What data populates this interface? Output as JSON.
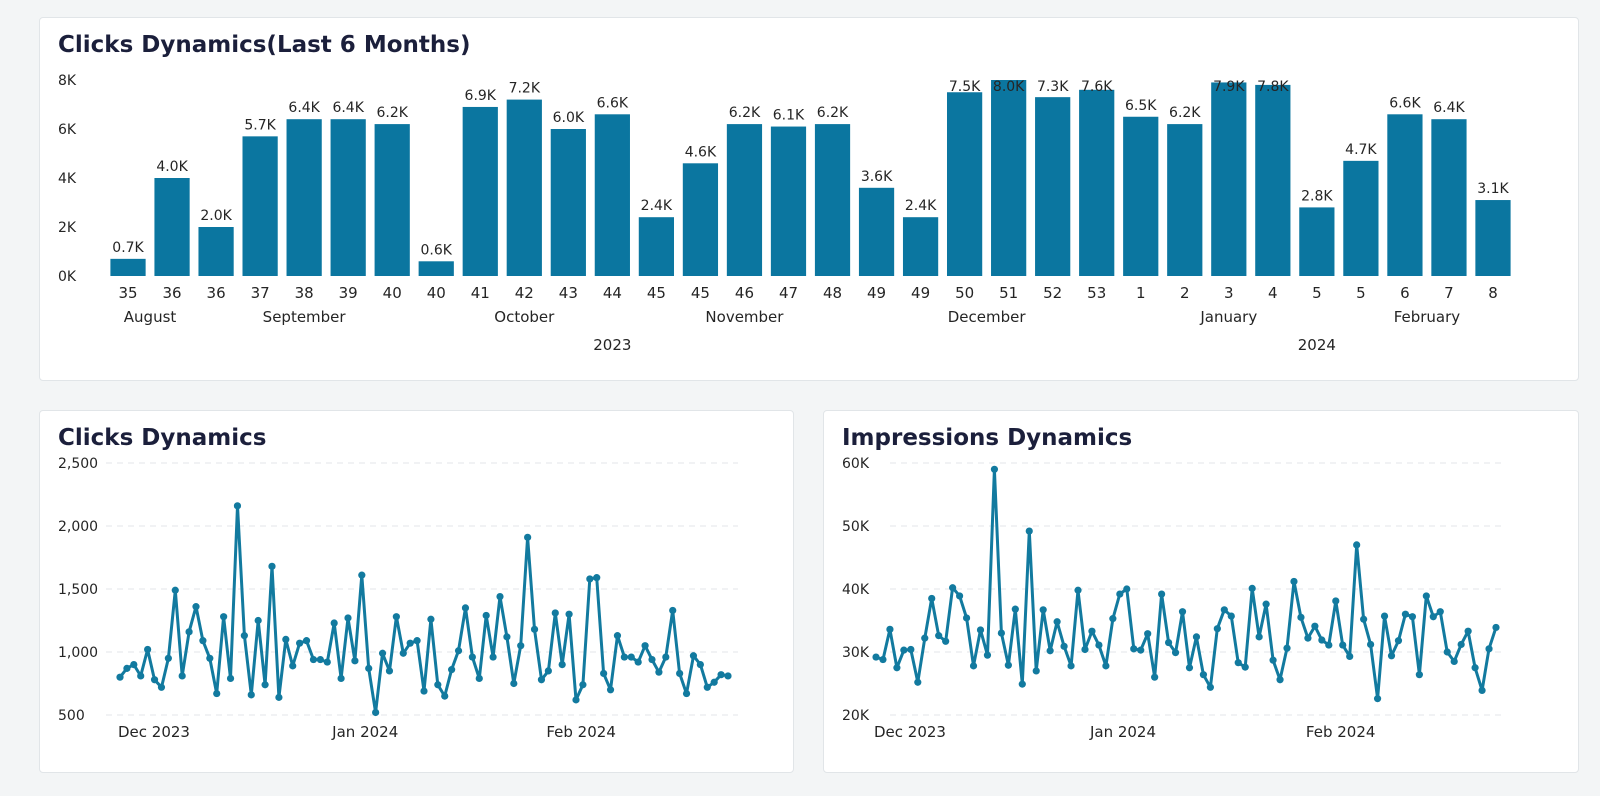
{
  "colors": {
    "bar": "#0b76a0",
    "line": "#127a9f",
    "text": "#252525",
    "grid": "#e3e6ea"
  },
  "top_card": {
    "title": "Clicks Dynamics(Last 6 Months)"
  },
  "clicks_card": {
    "title": "Clicks Dynamics"
  },
  "impressions_card": {
    "title": "Impressions Dynamics"
  },
  "chart_data": [
    {
      "type": "bar",
      "title": "Clicks Dynamics(Last 6 Months)",
      "y_ticks": [
        "0K",
        "2K",
        "4K",
        "6K",
        "8K"
      ],
      "y_tick_values": [
        0,
        2000,
        4000,
        6000,
        8000
      ],
      "ylim": [
        0,
        8000
      ],
      "categories": [
        "35",
        "36",
        "36",
        "37",
        "38",
        "39",
        "40",
        "40",
        "41",
        "42",
        "43",
        "44",
        "45",
        "45",
        "46",
        "47",
        "48",
        "49",
        "49",
        "50",
        "51",
        "52",
        "53",
        "1",
        "2",
        "3",
        "4",
        "5",
        "5",
        "6",
        "7",
        "8"
      ],
      "values": [
        700,
        4000,
        2000,
        5700,
        6400,
        6400,
        6200,
        600,
        6900,
        7200,
        6000,
        6600,
        2400,
        4600,
        6200,
        6100,
        6200,
        3600,
        2400,
        7500,
        8000,
        7300,
        7600,
        6500,
        6200,
        7900,
        7800,
        2800,
        4700,
        6600,
        6400,
        3100
      ],
      "data_labels": [
        "0.7K",
        "4.0K",
        "2.0K",
        "5.7K",
        "6.4K",
        "6.4K",
        "6.2K",
        "0.6K",
        "6.9K",
        "7.2K",
        "6.0K",
        "6.6K",
        "2.4K",
        "4.6K",
        "6.2K",
        "6.1K",
        "6.2K",
        "3.6K",
        "2.4K",
        "7.5K",
        "8.0K",
        "7.3K",
        "7.6K",
        "6.5K",
        "6.2K",
        "7.9K",
        "7.8K",
        "2.8K",
        "4.7K",
        "6.6K",
        "6.4K",
        "3.1K"
      ],
      "months": [
        {
          "label": "August",
          "from": 0,
          "to": 1
        },
        {
          "label": "September",
          "from": 2,
          "to": 6
        },
        {
          "label": "October",
          "from": 7,
          "to": 11
        },
        {
          "label": "November",
          "from": 12,
          "to": 16
        },
        {
          "label": "December",
          "from": 17,
          "to": 22
        },
        {
          "label": "January",
          "from": 23,
          "to": 27
        },
        {
          "label": "February",
          "from": 28,
          "to": 31
        }
      ],
      "years": [
        {
          "label": "2023",
          "from": 0,
          "to": 22
        },
        {
          "label": "2024",
          "from": 23,
          "to": 31
        }
      ]
    },
    {
      "type": "line",
      "title": "Clicks Dynamics",
      "ylim": [
        500,
        2500
      ],
      "y_ticks": [
        "500",
        "1,000",
        "1,500",
        "2,000",
        "2,500"
      ],
      "y_tick_values": [
        500,
        1000,
        1500,
        2000,
        2500
      ],
      "x_tick_labels": [
        "Dec 2023",
        "Jan 2024",
        "Feb 2024"
      ],
      "x_tick_index": [
        0,
        31,
        62
      ],
      "values": [
        800,
        870,
        900,
        810,
        1020,
        780,
        720,
        950,
        1490,
        810,
        1160,
        1360,
        1090,
        950,
        670,
        1280,
        790,
        2160,
        1130,
        660,
        1250,
        740,
        1680,
        640,
        1100,
        890,
        1070,
        1090,
        940,
        940,
        920,
        1230,
        790,
        1270,
        930,
        1610,
        870,
        520,
        990,
        850,
        1280,
        990,
        1070,
        1090,
        690,
        1260,
        740,
        650,
        860,
        1010,
        1350,
        960,
        790,
        1290,
        960,
        1440,
        1120,
        750,
        1050,
        1910,
        1180,
        780,
        850,
        1310,
        900,
        1300,
        620,
        740,
        1580,
        1590,
        830,
        700,
        1130,
        960,
        960,
        920,
        1050,
        940,
        840,
        960,
        1330,
        830,
        670,
        970,
        900,
        720,
        760,
        820,
        810
      ],
      "series_name": "Clicks"
    },
    {
      "type": "line",
      "title": "Impressions Dynamics",
      "ylim": [
        20000,
        60000
      ],
      "y_ticks": [
        "20K",
        "30K",
        "40K",
        "50K",
        "60K"
      ],
      "y_tick_values": [
        20000,
        30000,
        40000,
        50000,
        60000
      ],
      "x_tick_labels": [
        "Dec 2023",
        "Jan 2024",
        "Feb 2024"
      ],
      "x_tick_index": [
        0,
        31,
        62
      ],
      "values": [
        29200,
        28800,
        33600,
        27500,
        30300,
        30400,
        25200,
        32200,
        38500,
        32600,
        31700,
        40200,
        38900,
        35400,
        27800,
        33500,
        29500,
        59000,
        33000,
        27900,
        36800,
        24900,
        49200,
        27000,
        36700,
        30200,
        34800,
        30900,
        27800,
        39800,
        30400,
        33300,
        31100,
        27800,
        35300,
        39200,
        40000,
        30500,
        30300,
        32900,
        26000,
        39200,
        31500,
        29900,
        36400,
        27500,
        32400,
        26400,
        24400,
        33700,
        36700,
        35700,
        28300,
        27600,
        40100,
        32400,
        37600,
        28700,
        25600,
        30600,
        41200,
        35500,
        32200,
        34100,
        31900,
        31100,
        38100,
        31100,
        29300,
        47000,
        35200,
        31200,
        22600,
        35700,
        29400,
        31800,
        36000,
        35600,
        26400,
        38900,
        35600,
        36400,
        30000,
        28500,
        31200,
        33300,
        27500,
        23900,
        30500,
        33900
      ],
      "series_name": "Impressions"
    }
  ]
}
